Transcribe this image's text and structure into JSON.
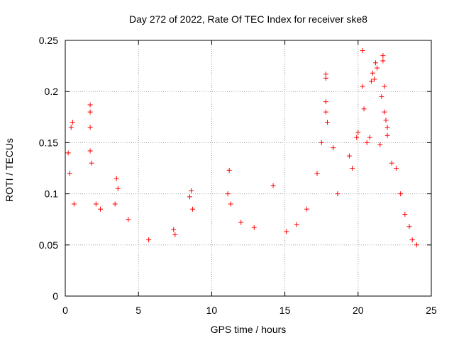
{
  "chart_data": {
    "type": "scatter",
    "title": "Day 272 of 2022, Rate Of TEC Index for receiver ske8",
    "xlabel": "GPS time / hours",
    "ylabel": "ROTI / TECUs",
    "xlim": [
      0,
      25
    ],
    "ylim": [
      0,
      0.25
    ],
    "xticks": [
      "0",
      "5",
      "10",
      "15",
      "20",
      "25"
    ],
    "yticks": [
      "0",
      "0.05",
      "0.1",
      "0.15",
      "0.2",
      "0.25"
    ],
    "grid": true,
    "marker": "plus",
    "color": "#ff0000",
    "series": [
      {
        "points": [
          [
            0.2,
            0.14
          ],
          [
            0.3,
            0.12
          ],
          [
            0.4,
            0.165
          ],
          [
            0.5,
            0.17
          ],
          [
            0.6,
            0.09
          ],
          [
            1.7,
            0.187
          ],
          [
            1.7,
            0.18
          ],
          [
            1.7,
            0.165
          ],
          [
            1.7,
            0.142
          ],
          [
            1.8,
            0.13
          ],
          [
            2.1,
            0.09
          ],
          [
            2.4,
            0.085
          ],
          [
            3.5,
            0.115
          ],
          [
            3.6,
            0.105
          ],
          [
            3.4,
            0.09
          ],
          [
            4.3,
            0.075
          ],
          [
            5.7,
            0.055
          ],
          [
            7.4,
            0.065
          ],
          [
            7.5,
            0.06
          ],
          [
            8.6,
            0.103
          ],
          [
            8.5,
            0.097
          ],
          [
            8.7,
            0.085
          ],
          [
            11.2,
            0.123
          ],
          [
            11.1,
            0.1
          ],
          [
            11.3,
            0.09
          ],
          [
            12.0,
            0.072
          ],
          [
            12.9,
            0.067
          ],
          [
            14.2,
            0.108
          ],
          [
            15.1,
            0.063
          ],
          [
            15.8,
            0.07
          ],
          [
            16.5,
            0.085
          ],
          [
            17.2,
            0.12
          ],
          [
            17.5,
            0.15
          ],
          [
            17.8,
            0.217
          ],
          [
            17.8,
            0.213
          ],
          [
            17.8,
            0.19
          ],
          [
            17.8,
            0.18
          ],
          [
            17.9,
            0.17
          ],
          [
            18.3,
            0.145
          ],
          [
            18.6,
            0.1
          ],
          [
            19.4,
            0.137
          ],
          [
            19.6,
            0.125
          ],
          [
            19.9,
            0.155
          ],
          [
            20.0,
            0.16
          ],
          [
            20.3,
            0.24
          ],
          [
            20.3,
            0.205
          ],
          [
            20.4,
            0.183
          ],
          [
            20.6,
            0.15
          ],
          [
            20.8,
            0.155
          ],
          [
            20.9,
            0.21
          ],
          [
            21.0,
            0.218
          ],
          [
            21.1,
            0.212
          ],
          [
            21.2,
            0.228
          ],
          [
            21.3,
            0.223
          ],
          [
            21.5,
            0.148
          ],
          [
            21.6,
            0.195
          ],
          [
            21.7,
            0.235
          ],
          [
            21.7,
            0.23
          ],
          [
            21.8,
            0.205
          ],
          [
            21.8,
            0.18
          ],
          [
            21.9,
            0.172
          ],
          [
            22.0,
            0.165
          ],
          [
            22.0,
            0.157
          ],
          [
            22.3,
            0.13
          ],
          [
            22.6,
            0.125
          ],
          [
            22.9,
            0.1
          ],
          [
            23.2,
            0.08
          ],
          [
            23.5,
            0.068
          ],
          [
            23.7,
            0.055
          ],
          [
            24.0,
            0.05
          ]
        ]
      }
    ]
  }
}
